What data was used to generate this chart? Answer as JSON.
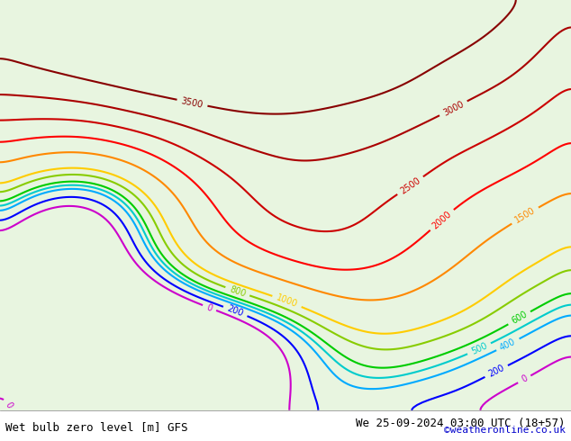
{
  "title_left": "Wet bulb zero level [m] GFS",
  "title_right": "We 25-09-2024 03:00 UTC (18+57)",
  "copyright": "©weatheronline.co.uk",
  "bg_color_land_light": "#e8f5e0",
  "bg_color_land_medium": "#d0ecc0",
  "bg_color_sea": "#c8dff0",
  "bg_color_gray": "#d0d0d0",
  "text_color_left": "#000000",
  "text_color_right": "#000000",
  "text_color_copyright": "#0000cc",
  "bottom_bar_color": "#ffffff",
  "contour_levels": [
    0,
    200,
    400,
    500,
    600,
    800,
    1000,
    1500,
    2000,
    2500,
    3000,
    3500
  ],
  "contour_colors": {
    "0": "#cc00cc",
    "200": "#0000ff",
    "400": "#00aaff",
    "500": "#00cccc",
    "600": "#00cc00",
    "800": "#88cc00",
    "1000": "#ffcc00",
    "1500": "#ff8800",
    "2000": "#ff0000",
    "2500": "#cc0000",
    "3000": "#aa0000",
    "3500": "#880000"
  },
  "fig_width": 6.34,
  "fig_height": 4.9,
  "dpi": 100
}
